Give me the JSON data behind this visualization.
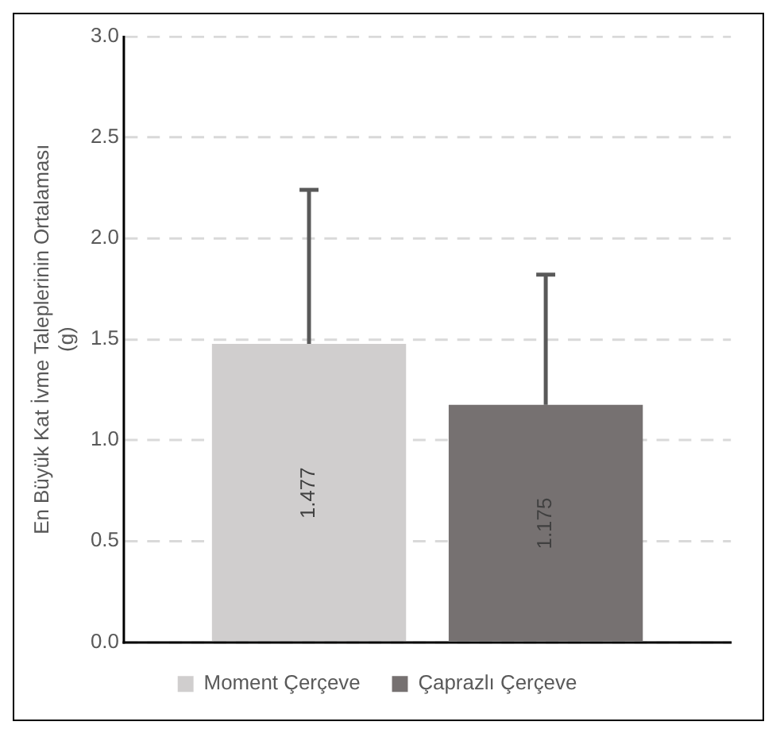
{
  "chart_data": {
    "type": "bar",
    "ylabel": "En Büyük Kat İvme Taleplerinin Ortalaması\n(g)",
    "categories": [
      null
    ],
    "series": [
      {
        "name": "Moment Çerçeve",
        "color": "#d0cece",
        "values": [
          1.477
        ],
        "errors": [
          [
            1.477,
            2.24
          ]
        ]
      },
      {
        "name": "Çaprazlı Çerçeve",
        "color": "#767171",
        "values": [
          1.175
        ],
        "errors": [
          [
            1.175,
            1.82
          ]
        ]
      }
    ],
    "ylim": [
      0,
      3
    ],
    "yticks": [
      {
        "value": 0,
        "label": "0.0"
      },
      {
        "value": 0.5,
        "label": "0.5"
      },
      {
        "value": 1,
        "label": "1.0"
      },
      {
        "value": 1.5,
        "label": "1.5"
      },
      {
        "value": 2,
        "label": "2.0"
      },
      {
        "value": 2.5,
        "label": "2.5"
      },
      {
        "value": 3,
        "label": "3.0"
      }
    ],
    "grid": "y",
    "legend": "bottom",
    "data_labels": true
  }
}
